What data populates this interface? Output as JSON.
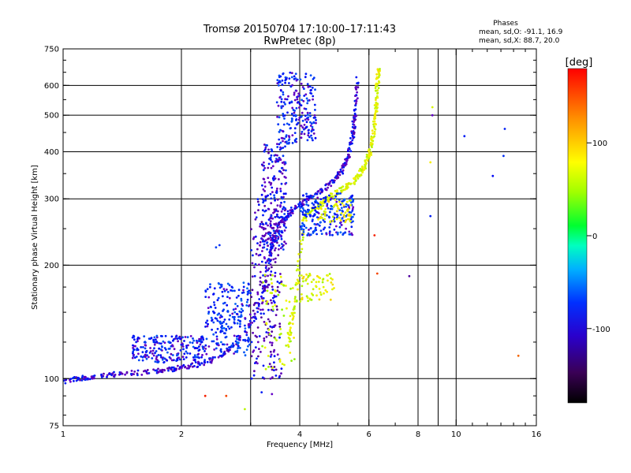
{
  "chart_data": {
    "type": "scatter",
    "title": "Tromsø 20150704 17:10:00–17:11:43",
    "subtitle": "RwPretec (8p)",
    "xlabel": "Frequency [MHz]",
    "ylabel": "Stationary phase Virtual Height [km]",
    "xscale": "log",
    "yscale": "log",
    "xlim": [
      1,
      16
    ],
    "ylim": [
      75,
      750
    ],
    "grid": true,
    "x_ticks": [
      1,
      2,
      4,
      6,
      8,
      10,
      16
    ],
    "x_tick_labels": [
      "1",
      "2",
      "4",
      "6",
      "8",
      "10",
      "16"
    ],
    "x_grid": [
      2,
      3,
      4,
      6,
      8,
      9,
      10
    ],
    "y_ticks": [
      75,
      100,
      200,
      300,
      400,
      500,
      600,
      750
    ],
    "y_tick_labels": [
      "75",
      "100",
      "200",
      "300",
      "400",
      "500",
      "600",
      "750"
    ],
    "y_grid": [
      100,
      200,
      300,
      400,
      500,
      600
    ],
    "stats": {
      "heading": "Phases",
      "line_o": "mean, sd,O: -91.1, 16.9",
      "line_x": "mean, sd,X:  88.7, 20.0"
    },
    "colorbar": {
      "label": "[deg]",
      "range": [
        -180,
        180
      ],
      "ticks": [
        100,
        0,
        -100
      ],
      "tick_labels": [
        "100",
        "0",
        "-100"
      ]
    },
    "o_trace": [
      [
        1.0,
        98
      ],
      [
        1.1,
        100
      ],
      [
        1.2,
        101
      ],
      [
        1.4,
        103
      ],
      [
        1.6,
        104
      ],
      [
        1.8,
        105
      ],
      [
        2.0,
        107
      ],
      [
        2.3,
        110
      ],
      [
        2.6,
        118
      ],
      [
        2.9,
        130
      ],
      [
        3.1,
        150
      ],
      [
        3.25,
        175
      ],
      [
        3.35,
        205
      ],
      [
        3.45,
        240
      ],
      [
        3.6,
        262
      ],
      [
        3.8,
        278
      ],
      [
        4.0,
        290
      ],
      [
        4.3,
        305
      ],
      [
        4.6,
        318
      ],
      [
        4.9,
        335
      ],
      [
        5.1,
        355
      ],
      [
        5.3,
        385
      ],
      [
        5.45,
        440
      ],
      [
        5.55,
        520
      ],
      [
        5.6,
        640
      ]
    ],
    "x_trace": [
      [
        3.7,
        118
      ],
      [
        3.9,
        160
      ],
      [
        4.1,
        265
      ],
      [
        4.4,
        285
      ],
      [
        4.8,
        305
      ],
      [
        5.2,
        320
      ],
      [
        5.5,
        335
      ],
      [
        5.8,
        360
      ],
      [
        6.0,
        390
      ],
      [
        6.15,
        440
      ],
      [
        6.25,
        520
      ],
      [
        6.3,
        600
      ],
      [
        6.35,
        660
      ]
    ],
    "o_clusters": [
      {
        "x": [
          3.0,
          3.6
        ],
        "y": [
          100,
          300
        ],
        "phase": -115
      },
      {
        "x": [
          3.2,
          3.7
        ],
        "y": [
          220,
          420
        ],
        "phase": -105
      },
      {
        "x": [
          2.3,
          3.0
        ],
        "y": [
          115,
          180
        ],
        "phase": -95
      },
      {
        "x": [
          1.5,
          2.3
        ],
        "y": [
          110,
          130
        ],
        "phase": -100
      },
      {
        "x": [
          3.5,
          4.4
        ],
        "y": [
          420,
          650
        ],
        "phase": -100
      },
      {
        "x": [
          4.0,
          5.5
        ],
        "y": [
          240,
          310
        ],
        "phase": -95
      }
    ],
    "x_clusters": [
      {
        "x": [
          3.2,
          3.9
        ],
        "y": [
          105,
          190
        ],
        "phase": 95
      },
      {
        "x": [
          4.0,
          4.9
        ],
        "y": [
          160,
          190
        ],
        "phase": 100
      },
      {
        "x": [
          4.4,
          5.4
        ],
        "y": [
          260,
          300
        ],
        "phase": 105
      }
    ],
    "scattered_points": [
      {
        "x": 8.6,
        "y": 270,
        "phase": -100
      },
      {
        "x": 8.7,
        "y": 500,
        "phase": -110
      },
      {
        "x": 10.5,
        "y": 440,
        "phase": -100
      },
      {
        "x": 12.4,
        "y": 345,
        "phase": -105
      },
      {
        "x": 13.3,
        "y": 460,
        "phase": -100
      },
      {
        "x": 13.2,
        "y": 390,
        "phase": -95
      },
      {
        "x": 8.6,
        "y": 375,
        "phase": 110
      },
      {
        "x": 8.7,
        "y": 525,
        "phase": 100
      },
      {
        "x": 7.6,
        "y": 187,
        "phase": -130
      },
      {
        "x": 6.3,
        "y": 190,
        "phase": 160
      },
      {
        "x": 14.4,
        "y": 115,
        "phase": 150
      },
      {
        "x": 6.2,
        "y": 240,
        "phase": 170
      },
      {
        "x": 2.3,
        "y": 90,
        "phase": 170
      },
      {
        "x": 2.6,
        "y": 90,
        "phase": 160
      },
      {
        "x": 2.9,
        "y": 83,
        "phase": 90
      },
      {
        "x": 3.2,
        "y": 92,
        "phase": -100
      },
      {
        "x": 3.4,
        "y": 91,
        "phase": -110
      },
      {
        "x": 2.5,
        "y": 226,
        "phase": -95
      },
      {
        "x": 2.45,
        "y": 223,
        "phase": -90
      }
    ]
  }
}
